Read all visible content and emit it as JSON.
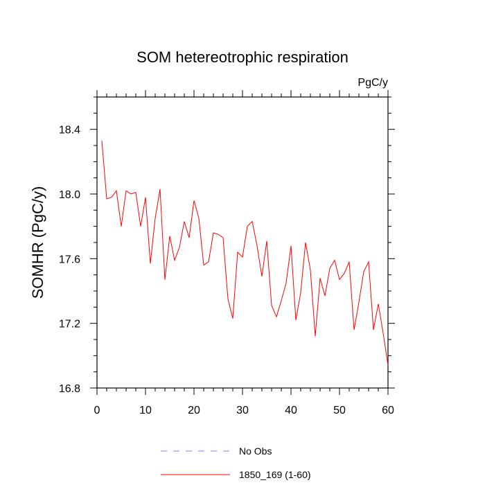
{
  "chart_data": {
    "type": "line",
    "title": "SOM hetereotrophic respiration",
    "units": "PgC/y",
    "xlabel": "",
    "ylabel": "SOMHR  (PgC/y)",
    "xlim": [
      0,
      60
    ],
    "ylim": [
      16.8,
      18.6
    ],
    "x_ticks": [
      0,
      10,
      20,
      30,
      40,
      50,
      60
    ],
    "x_tick_labels": [
      "0",
      "10",
      "20",
      "30",
      "40",
      "50",
      "60"
    ],
    "y_ticks": [
      16.8,
      17.2,
      17.6,
      18.0,
      18.4
    ],
    "y_tick_labels": [
      "16.8",
      "17.2",
      "17.6",
      "18.0",
      "18.4"
    ],
    "legend": [
      {
        "label": "No Obs",
        "color": "#8080ff",
        "style": "dashed"
      },
      {
        "label": "1850_169 (1-60)",
        "color": "#ff0000",
        "style": "solid"
      }
    ],
    "series": [
      {
        "name": "1850_169 (1-60)",
        "color": "#ff0000",
        "x": [
          1,
          2,
          3,
          4,
          5,
          6,
          7,
          8,
          9,
          10,
          11,
          12,
          13,
          14,
          15,
          16,
          17,
          18,
          19,
          20,
          21,
          22,
          23,
          24,
          25,
          26,
          27,
          28,
          29,
          30,
          31,
          32,
          33,
          34,
          35,
          36,
          37,
          38,
          39,
          40,
          41,
          42,
          43,
          44,
          45,
          46,
          47,
          48,
          49,
          50,
          51,
          52,
          53,
          54,
          55,
          56,
          57,
          58,
          59,
          60
        ],
        "values": [
          18.33,
          17.97,
          17.98,
          18.02,
          17.8,
          18.02,
          18.0,
          18.01,
          17.8,
          17.98,
          17.57,
          17.85,
          18.03,
          17.47,
          17.74,
          17.59,
          17.67,
          17.83,
          17.73,
          17.96,
          17.85,
          17.56,
          17.58,
          17.76,
          17.75,
          17.73,
          17.35,
          17.23,
          17.64,
          17.61,
          17.8,
          17.83,
          17.68,
          17.49,
          17.71,
          17.31,
          17.24,
          17.34,
          17.45,
          17.68,
          17.22,
          17.39,
          17.7,
          17.53,
          17.12,
          17.48,
          17.37,
          17.54,
          17.59,
          17.47,
          17.51,
          17.58,
          17.16,
          17.33,
          17.52,
          17.58,
          17.16,
          17.32,
          17.14,
          16.94
        ]
      }
    ]
  }
}
